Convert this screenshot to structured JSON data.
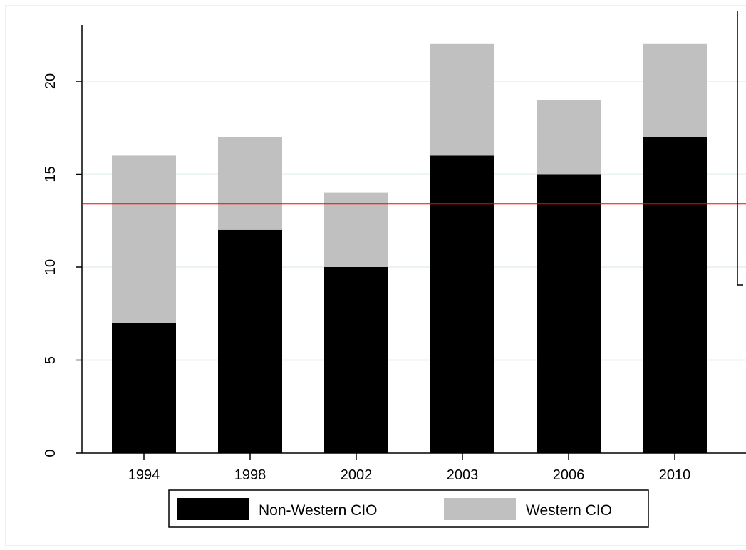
{
  "chart_data": {
    "type": "bar",
    "stacked": true,
    "categories": [
      "1994",
      "1998",
      "2002",
      "2003",
      "2006",
      "2010"
    ],
    "series": [
      {
        "name": "Non-Western CIO",
        "color": "#000000",
        "values": [
          7,
          12,
          10,
          16,
          15,
          17
        ]
      },
      {
        "name": "Western CIO",
        "color": "#c0c0c0",
        "values": [
          9,
          5,
          4,
          6,
          4,
          5
        ]
      }
    ],
    "reference_line": {
      "value": 13.4,
      "color": "#ff0000"
    },
    "y_ticks": [
      0,
      5,
      10,
      15,
      20
    ],
    "ylim": [
      0,
      22
    ],
    "grid": true,
    "legend_position": "bottom"
  }
}
